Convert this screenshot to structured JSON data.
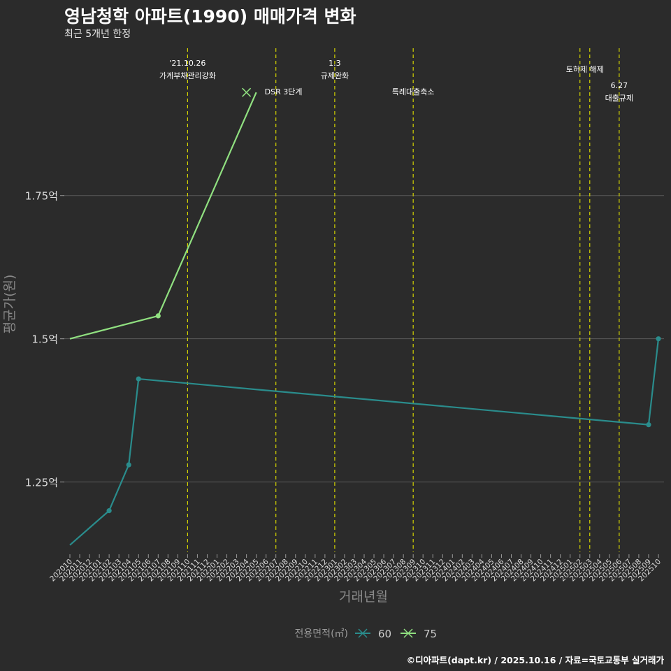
{
  "header": {
    "title": "영남청학 아파트(1990) 매매가격 변화",
    "subtitle": "최근 5개년 한정"
  },
  "footer": {
    "caption": "©디아파트(dapt.kr) / 2025.10.16 / 자료=국토교통부 실거래가"
  },
  "colors": {
    "background": "#2b2b2b",
    "grid": "#5a5a5a",
    "event_line": "#d4d400",
    "series_60": "#2a8c8c",
    "series_75": "#90e080"
  },
  "chart_data": {
    "type": "line",
    "title": "영남청학 아파트(1990) 매매가격 변화",
    "xlabel": "거래년월",
    "ylabel": "평균가(원)",
    "ylim": [
      1.13,
      1.99
    ],
    "yticks": [
      {
        "value": 1.25,
        "label": "1.25억"
      },
      {
        "value": 1.5,
        "label": "1.5억"
      },
      {
        "value": 1.75,
        "label": "1.75억"
      }
    ],
    "categories": [
      "202010",
      "202011",
      "202012",
      "202101",
      "202102",
      "202103",
      "202104",
      "202105",
      "202106",
      "202107",
      "202108",
      "202109",
      "202110",
      "202111",
      "202112",
      "202201",
      "202202",
      "202203",
      "202204",
      "202205",
      "202206",
      "202207",
      "202208",
      "202209",
      "202210",
      "202211",
      "202212",
      "202301",
      "202302",
      "202303",
      "202304",
      "202305",
      "202306",
      "202307",
      "202308",
      "202309",
      "202310",
      "202311",
      "202312",
      "202401",
      "202402",
      "202403",
      "202404",
      "202405",
      "202406",
      "202407",
      "202408",
      "202409",
      "202410",
      "202411",
      "202412",
      "202501",
      "202502",
      "202503",
      "202504",
      "202505",
      "202506",
      "202507",
      "202508",
      "202509",
      "202510"
    ],
    "legend": {
      "title": "전용면적(㎡)",
      "position": "bottom"
    },
    "series": [
      {
        "name": "60",
        "color": "#2a8c8c",
        "points": [
          {
            "x": "202010",
            "y": 1.14,
            "marker": false
          },
          {
            "x": "202102",
            "y": 1.2,
            "marker": true
          },
          {
            "x": "202104",
            "y": 1.28,
            "marker": true
          },
          {
            "x": "202105",
            "y": 1.43,
            "marker": true
          },
          {
            "x": "202509",
            "y": 1.35,
            "marker": true
          },
          {
            "x": "202510",
            "y": 1.5,
            "marker": true
          }
        ]
      },
      {
        "name": "75",
        "color": "#90e080",
        "points": [
          {
            "x": "202010",
            "y": 1.5,
            "marker": false
          },
          {
            "x": "202107",
            "y": 1.54,
            "marker": true
          },
          {
            "x": "202205",
            "y": 1.93,
            "marker": false
          }
        ]
      }
    ],
    "events": [
      {
        "x": "202110",
        "lines": [
          "'21.10.26",
          "가계부채관리강화"
        ],
        "row": 0
      },
      {
        "x": "202207",
        "lines": [
          "DSR 3단계"
        ],
        "row": 2
      },
      {
        "x": "202301",
        "lines": [
          "1.3",
          "규제완화"
        ],
        "row": 0
      },
      {
        "x": "202309",
        "lines": [
          "특례대출축소"
        ],
        "row": 2
      },
      {
        "x": "202502",
        "lines": [
          "토허제 해제"
        ],
        "row": 1
      },
      {
        "x": "202503",
        "lines": [],
        "row": 1
      },
      {
        "x": "202506",
        "lines": [
          "6.27",
          "대출규제"
        ],
        "row": 3
      }
    ]
  }
}
